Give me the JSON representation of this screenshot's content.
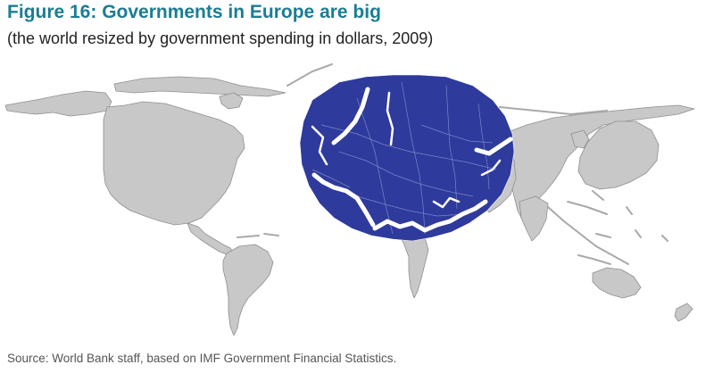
{
  "figure": {
    "title": "Figure 16: Governments in Europe are big",
    "subtitle": "(the world resized by government spending in dollars, 2009)",
    "source": "Source: World Bank staff, based on IMF Government Financial Statistics."
  },
  "colors": {
    "title": "#1a7d94",
    "europe_fill": "#2e3a9c",
    "land_fill": "#c8c8c8",
    "land_stroke": "#8f8f8f"
  }
}
